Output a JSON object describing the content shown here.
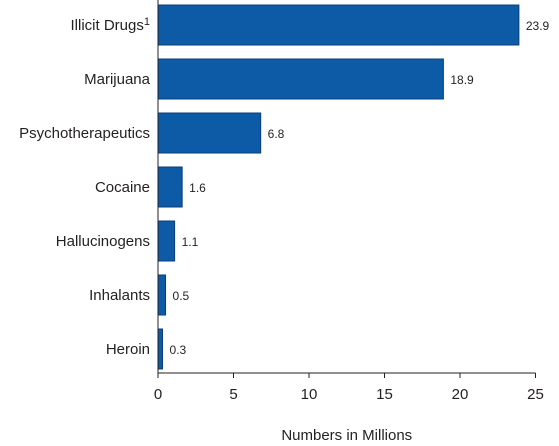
{
  "chart_data": {
    "type": "bar",
    "orientation": "horizontal",
    "categories": [
      {
        "label": "Illicit Drugs",
        "superscript": "1"
      },
      {
        "label": "Marijuana",
        "superscript": ""
      },
      {
        "label": "Psychotherapeutics",
        "superscript": ""
      },
      {
        "label": "Cocaine",
        "superscript": ""
      },
      {
        "label": "Hallucinogens",
        "superscript": ""
      },
      {
        "label": "Inhalants",
        "superscript": ""
      },
      {
        "label": "Heroin",
        "superscript": ""
      }
    ],
    "values": [
      23.9,
      18.9,
      6.8,
      1.6,
      1.1,
      0.5,
      0.3
    ],
    "value_labels": [
      "23.9",
      "18.9",
      "6.8",
      "1.6",
      "1.1",
      "0.5",
      "0.3"
    ],
    "xlabel": "Numbers in Millions",
    "xlim": [
      0,
      25
    ],
    "xticks": [
      0,
      5,
      10,
      15,
      20,
      25
    ],
    "grid": false,
    "bar_color": "#0d5aa7"
  }
}
